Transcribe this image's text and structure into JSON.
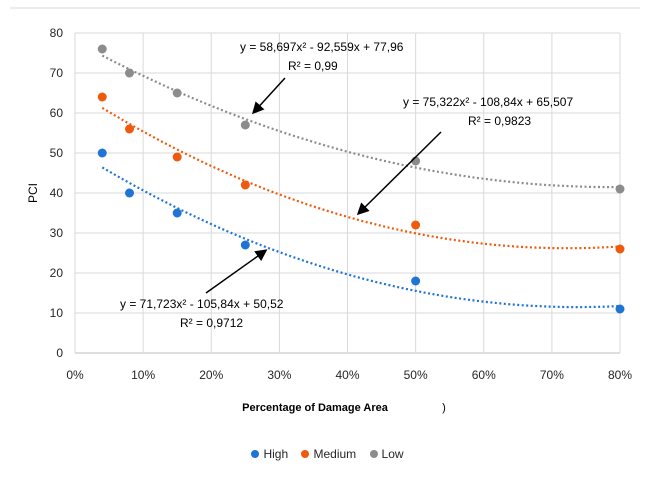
{
  "chart_data": {
    "type": "scatter",
    "ylabel": "PCI",
    "xlabel": "Percentage of Damage Area",
    "xlabel_suffix": ")",
    "xlim": [
      0,
      0.8
    ],
    "ylim": [
      0,
      80
    ],
    "x_ticks": [
      "0%",
      "10%",
      "20%",
      "30%",
      "40%",
      "50%",
      "60%",
      "70%",
      "80%"
    ],
    "y_ticks": [
      "0",
      "10",
      "20",
      "30",
      "40",
      "50",
      "60",
      "70",
      "80"
    ],
    "grid": true,
    "legend_position": "bottom",
    "series": [
      {
        "name": "High",
        "color": "#1f74d6",
        "x": [
          0.04,
          0.08,
          0.15,
          0.25,
          0.5,
          0.8
        ],
        "y": [
          50,
          40,
          35,
          27,
          18,
          11
        ],
        "trend": {
          "a": 71.723,
          "b": -105.84,
          "c": 50.52
        },
        "equation": "y = 71,723x² - 105,84x + 50,52",
        "r2": "R² = 0,9712"
      },
      {
        "name": "Medium",
        "color": "#ee5a0e",
        "x": [
          0.04,
          0.08,
          0.15,
          0.25,
          0.5,
          0.8
        ],
        "y": [
          64,
          56,
          49,
          42,
          32,
          26
        ],
        "trend": {
          "a": 75.322,
          "b": -108.84,
          "c": 65.507
        },
        "equation": "y = 75,322x² - 108,84x + 65,507",
        "r2": "R² = 0,9823"
      },
      {
        "name": "Low",
        "color": "#8c8c8c",
        "x": [
          0.04,
          0.08,
          0.15,
          0.25,
          0.5,
          0.8
        ],
        "y": [
          76,
          70,
          65,
          57,
          48,
          41
        ],
        "trend": {
          "a": 58.697,
          "b": -92.559,
          "c": 77.96
        },
        "equation": "y = 58,697x² - 92,559x + 77,96",
        "r2": "R² = 0,99"
      }
    ]
  }
}
